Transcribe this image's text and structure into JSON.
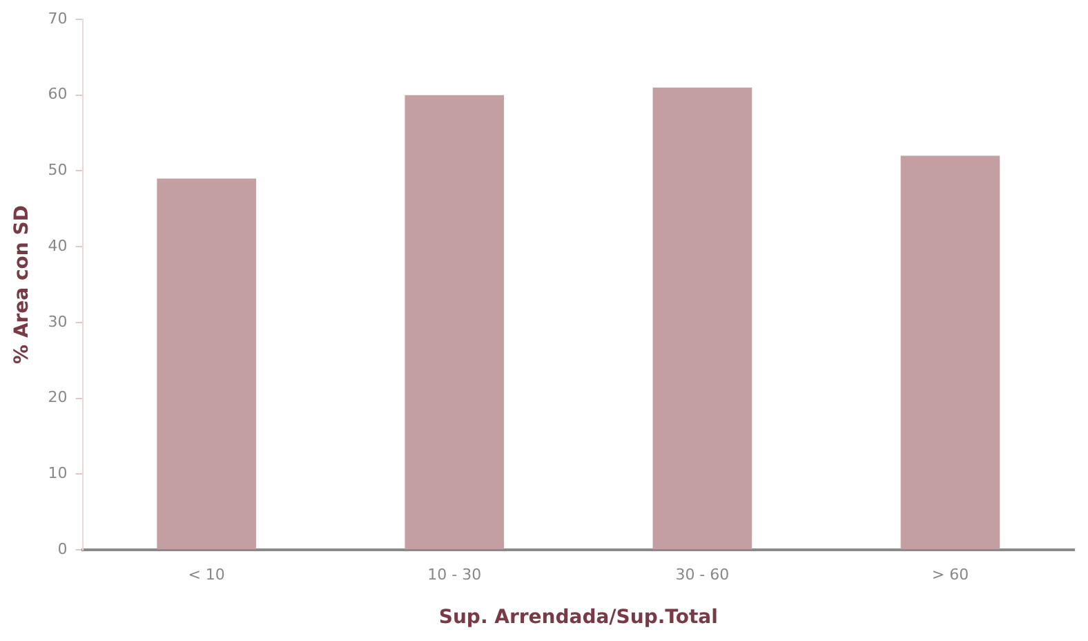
{
  "chart_data": {
    "type": "bar",
    "xlabel": "Sup. Arrendada/Sup.Total",
    "ylabel": "% Area con SD",
    "categories": [
      "< 10",
      "10 - 30",
      "30 - 60",
      "> 60"
    ],
    "values": [
      49,
      60,
      61,
      52
    ],
    "color": "#c49fa2",
    "ylim": [
      0,
      70
    ],
    "yticks": [
      0,
      10,
      20,
      30,
      40,
      50,
      60,
      70
    ],
    "grid": false,
    "legend": false
  }
}
